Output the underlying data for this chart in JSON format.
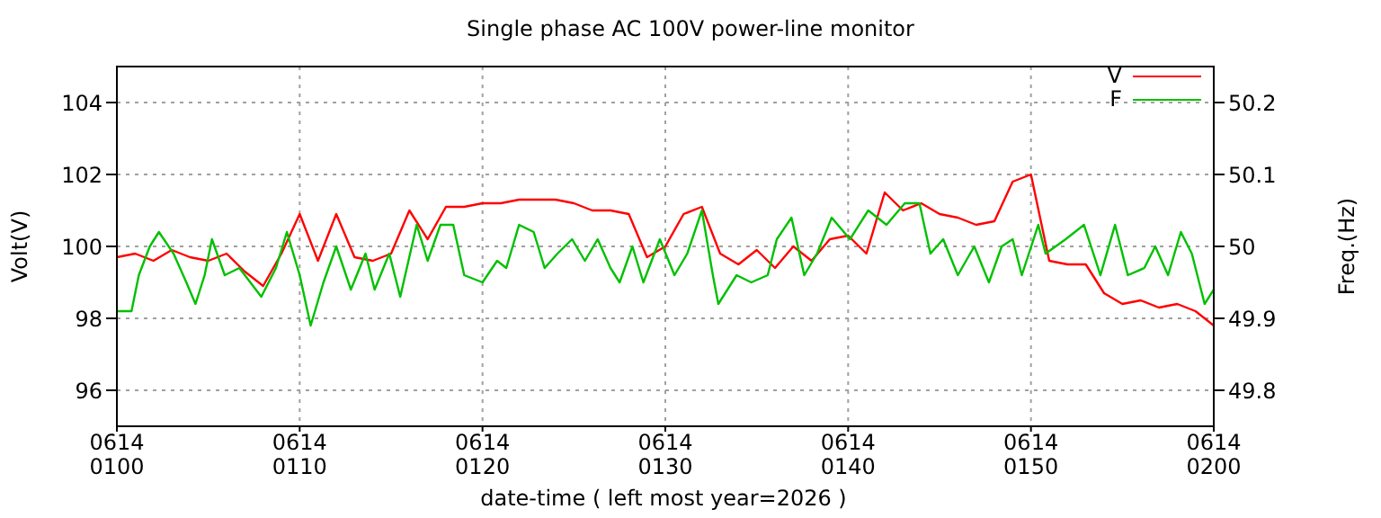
{
  "chart_data": {
    "type": "line",
    "title": "Single phase AC 100V power-line monitor",
    "xlabel": "date-time ( left most year=2026 )",
    "ylabel": "Volt(V)",
    "y2label": "Freq.(Hz)",
    "xlim": [
      "2026-06-14T01:00",
      "2026-06-14T02:00"
    ],
    "xticks": [
      {
        "value": "2026-06-14T01:00",
        "label": "0614\n0100"
      },
      {
        "value": "2026-06-14T01:10",
        "label": "0614\n0110"
      },
      {
        "value": "2026-06-14T01:20",
        "label": "0614\n0120"
      },
      {
        "value": "2026-06-14T01:30",
        "label": "0614\n0130"
      },
      {
        "value": "2026-06-14T01:40",
        "label": "0614\n0140"
      },
      {
        "value": "2026-06-14T01:50",
        "label": "0614\n0150"
      },
      {
        "value": "2026-06-14T02:00",
        "label": "0614\n0200"
      }
    ],
    "ylim": [
      95,
      105
    ],
    "yticks": [
      96,
      98,
      100,
      102,
      104
    ],
    "y2lim": [
      49.75,
      50.25
    ],
    "y2ticks": [
      49.8,
      49.9,
      50,
      50.1,
      50.2
    ],
    "grid": true,
    "legend": "top right",
    "marker": "none",
    "line_style": "solid",
    "series": [
      {
        "name": "V",
        "color": "#ff0000",
        "x": [
          "2026-06-14T01:00",
          "2026-06-14T01:01",
          "2026-06-14T01:02",
          "2026-06-14T01:03",
          "2026-06-14T01:04",
          "2026-06-14T01:05",
          "2026-06-14T01:06",
          "2026-06-14T01:07",
          "2026-06-14T01:08",
          "2026-06-14T01:09",
          "2026-06-14T01:10",
          "2026-06-14T01:11",
          "2026-06-14T01:12",
          "2026-06-14T01:13",
          "2026-06-14T01:14",
          "2026-06-14T01:15",
          "2026-06-14T01:16",
          "2026-06-14T01:17",
          "2026-06-14T01:18",
          "2026-06-14T01:19",
          "2026-06-14T01:20",
          "2026-06-14T01:21",
          "2026-06-14T01:22",
          "2026-06-14T01:23",
          "2026-06-14T01:24",
          "2026-06-14T01:25",
          "2026-06-14T01:26",
          "2026-06-14T01:27",
          "2026-06-14T01:28",
          "2026-06-14T01:29",
          "2026-06-14T01:30",
          "2026-06-14T01:31",
          "2026-06-14T01:32",
          "2026-06-14T01:33",
          "2026-06-14T01:34",
          "2026-06-14T01:35",
          "2026-06-14T01:36",
          "2026-06-14T01:37",
          "2026-06-14T01:38",
          "2026-06-14T01:39",
          "2026-06-14T01:40",
          "2026-06-14T01:41",
          "2026-06-14T01:42",
          "2026-06-14T01:43",
          "2026-06-14T01:44",
          "2026-06-14T01:45",
          "2026-06-14T01:46",
          "2026-06-14T01:47",
          "2026-06-14T01:48",
          "2026-06-14T01:49",
          "2026-06-14T01:50",
          "2026-06-14T01:51",
          "2026-06-14T01:52",
          "2026-06-14T01:53",
          "2026-06-14T01:54",
          "2026-06-14T01:55",
          "2026-06-14T01:56",
          "2026-06-14T01:57",
          "2026-06-14T01:58",
          "2026-06-14T01:59",
          "2026-06-14T02:00"
        ],
        "values": [
          99.7,
          99.8,
          99.6,
          99.9,
          99.7,
          99.6,
          99.8,
          99.3,
          98.9,
          99.8,
          100.9,
          99.6,
          100.9,
          99.7,
          99.6,
          99.8,
          101.0,
          100.2,
          101.1,
          101.1,
          101.2,
          101.2,
          101.3,
          101.3,
          101.3,
          101.2,
          101.0,
          101.0,
          100.9,
          99.7,
          100.0,
          100.9,
          101.1,
          99.8,
          99.5,
          99.9,
          99.4,
          100.0,
          99.6,
          100.2,
          100.3,
          99.8,
          101.5,
          101.0,
          101.2,
          100.9,
          100.8,
          100.6,
          100.7,
          101.8,
          102.0,
          99.6,
          99.5,
          99.5,
          98.7,
          98.4,
          98.5,
          98.3,
          98.4,
          98.2,
          97.8
        ]
      },
      {
        "name": "F",
        "color": "#00c000",
        "axis": "y2",
        "x": [
          "2026-06-14T01:00:00",
          "2026-06-14T01:00:48",
          "2026-06-14T01:01:12",
          "2026-06-14T01:01:48",
          "2026-06-14T01:02:18",
          "2026-06-14T01:03:06",
          "2026-06-14T01:03:48",
          "2026-06-14T01:04:18",
          "2026-06-14T01:04:48",
          "2026-06-14T01:05:12",
          "2026-06-14T01:05:54",
          "2026-06-14T01:06:42",
          "2026-06-14T01:07:54",
          "2026-06-14T01:08:42",
          "2026-06-14T01:09:18",
          "2026-06-14T01:10:00",
          "2026-06-14T01:10:36",
          "2026-06-14T01:11:18",
          "2026-06-14T01:12:00",
          "2026-06-14T01:12:48",
          "2026-06-14T01:13:36",
          "2026-06-14T01:14:06",
          "2026-06-14T01:14:54",
          "2026-06-14T01:15:30",
          "2026-06-14T01:16:24",
          "2026-06-14T01:17:00",
          "2026-06-14T01:17:42",
          "2026-06-14T01:18:24",
          "2026-06-14T01:19:00",
          "2026-06-14T01:20:00",
          "2026-06-14T01:20:48",
          "2026-06-14T01:21:18",
          "2026-06-14T01:22:00",
          "2026-06-14T01:22:48",
          "2026-06-14T01:23:24",
          "2026-06-14T01:24:06",
          "2026-06-14T01:24:54",
          "2026-06-14T01:25:36",
          "2026-06-14T01:26:18",
          "2026-06-14T01:27:00",
          "2026-06-14T01:27:30",
          "2026-06-14T01:28:12",
          "2026-06-14T01:28:48",
          "2026-06-14T01:29:42",
          "2026-06-14T01:30:30",
          "2026-06-14T01:31:12",
          "2026-06-14T01:32:00",
          "2026-06-14T01:32:36",
          "2026-06-14T01:32:54",
          "2026-06-14T01:33:54",
          "2026-06-14T01:34:42",
          "2026-06-14T01:35:36",
          "2026-06-14T01:36:06",
          "2026-06-14T01:36:54",
          "2026-06-14T01:37:36",
          "2026-06-14T01:38:18",
          "2026-06-14T01:39:06",
          "2026-06-14T01:40:06",
          "2026-06-14T01:41:06",
          "2026-06-14T01:42:06",
          "2026-06-14T01:43:06",
          "2026-06-14T01:43:54",
          "2026-06-14T01:44:30",
          "2026-06-14T01:45:12",
          "2026-06-14T01:46:00",
          "2026-06-14T01:46:54",
          "2026-06-14T01:47:42",
          "2026-06-14T01:48:24",
          "2026-06-14T01:49:00",
          "2026-06-14T01:49:30",
          "2026-06-14T01:50:24",
          "2026-06-14T01:50:48",
          "2026-06-14T01:51:54",
          "2026-06-14T01:52:54",
          "2026-06-14T01:53:48",
          "2026-06-14T01:54:36",
          "2026-06-14T01:55:18",
          "2026-06-14T01:56:12",
          "2026-06-14T01:56:48",
          "2026-06-14T01:57:30",
          "2026-06-14T01:58:12",
          "2026-06-14T01:58:48",
          "2026-06-14T01:59:30",
          "2026-06-14T02:00:00"
        ],
        "values": [
          49.91,
          49.91,
          49.96,
          50.0,
          50.02,
          49.99,
          49.95,
          49.92,
          49.96,
          50.01,
          49.96,
          49.97,
          49.93,
          49.97,
          50.02,
          49.96,
          49.89,
          49.95,
          50.0,
          49.94,
          49.99,
          49.94,
          49.99,
          49.93,
          50.03,
          49.98,
          50.03,
          50.03,
          49.96,
          49.95,
          49.98,
          49.97,
          50.03,
          50.02,
          49.97,
          49.99,
          50.01,
          49.98,
          50.01,
          49.97,
          49.95,
          50.0,
          49.95,
          50.01,
          49.96,
          49.99,
          50.05,
          49.96,
          49.92,
          49.96,
          49.95,
          49.96,
          50.01,
          50.04,
          49.96,
          49.99,
          50.04,
          50.01,
          50.05,
          50.03,
          50.06,
          50.06,
          49.99,
          50.01,
          49.96,
          50.0,
          49.95,
          50.0,
          50.01,
          49.96,
          50.03,
          49.99,
          50.01,
          50.03,
          49.96,
          50.03,
          49.96,
          49.97,
          50.0,
          49.96,
          50.02,
          49.99,
          49.92,
          49.94
        ]
      }
    ]
  }
}
